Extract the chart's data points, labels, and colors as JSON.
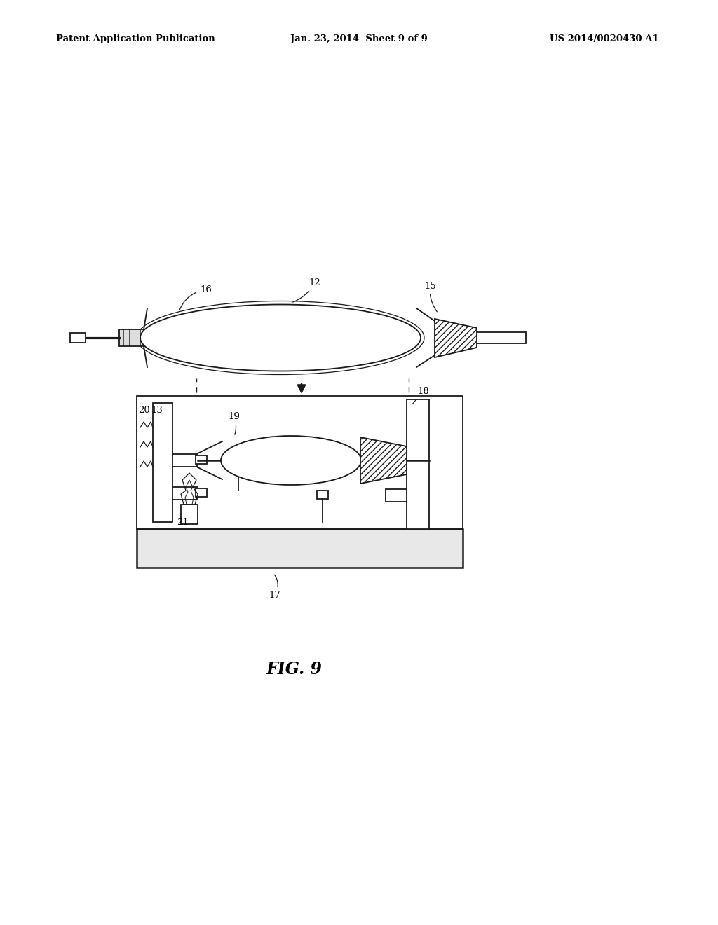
{
  "bg_color": "#ffffff",
  "lc": "#1a1a1a",
  "lw": 1.3,
  "header_left": "Patent Application Publication",
  "header_mid": "Jan. 23, 2014  Sheet 9 of 9",
  "header_right": "US 2014/0020430 A1",
  "fig_label": "FIG. 9",
  "figsize": [
    10.24,
    13.2
  ],
  "dpi": 100
}
